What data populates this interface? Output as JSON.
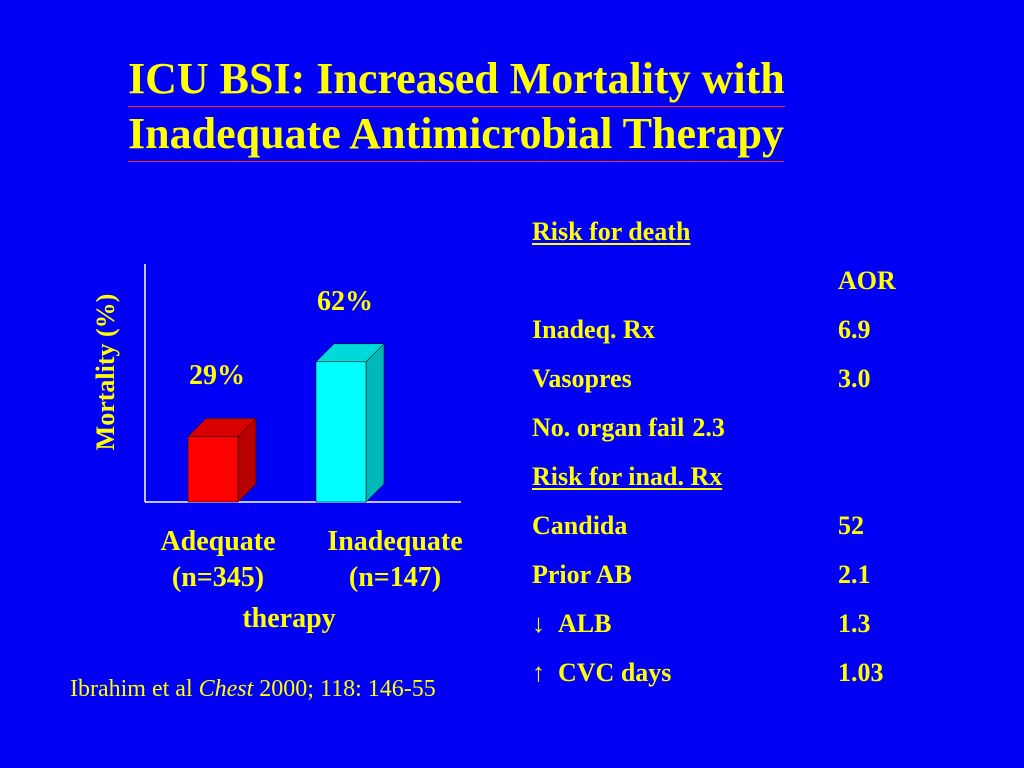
{
  "title": {
    "line1": "ICU BSI: Increased Mortality with",
    "line2": "Inadequate Antimicrobial Therapy"
  },
  "chart_data": {
    "type": "bar",
    "ylabel": "Mortality (%)",
    "xlabel": "therapy",
    "categories": [
      "Adequate (n=345)",
      "Inadequate (n=147)"
    ],
    "category_lines": [
      [
        "Adequate",
        "(n=345)"
      ],
      [
        "Inadequate",
        "(n=147)"
      ]
    ],
    "values": [
      29,
      62
    ],
    "value_labels": [
      "29%",
      "62%"
    ],
    "bar_colors": [
      "#ff0000",
      "#00ffff"
    ],
    "ylim": [
      0,
      100
    ],
    "grid": false,
    "style": "3d"
  },
  "risk": {
    "heading": "Risk for death",
    "aor_header": "AOR",
    "death_factors": [
      {
        "label": "Inadeq. Rx",
        "value": "6.9"
      },
      {
        "label": "Vasopres",
        "value": "3.0"
      },
      {
        "label": "No. organ fail",
        "value": "2.3"
      }
    ],
    "inad_heading": "Risk for inad. Rx",
    "inad_factors": [
      {
        "label": "Candida",
        "value": "52",
        "arrow": ""
      },
      {
        "label": "Prior AB",
        "value": "2.1",
        "arrow": ""
      },
      {
        "label": "ALB",
        "value": "1.3",
        "arrow": "↓"
      },
      {
        "label": "CVC days",
        "value": "1.03",
        "arrow": "↑"
      }
    ]
  },
  "citation": {
    "authors": "Ibrahim et al ",
    "journal": "Chest",
    "details": " 2000; 118: 146-55"
  },
  "colors": {
    "background": "#0000f5",
    "text": "#ffff00",
    "title_underline": "#ff2a2a",
    "axis": "#ffffff"
  }
}
